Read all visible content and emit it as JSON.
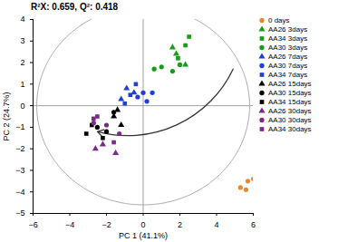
{
  "chart_data": {
    "type": "scatter",
    "title": "R²X: 0.659, Q²: 0.418",
    "x_label": "PC 1 (41.1%)",
    "y_label": "PC 2 (24.7%)",
    "xlim": [
      -6,
      6
    ],
    "xticks": [
      -6,
      -4,
      -2,
      0,
      2,
      4,
      6
    ],
    "ylim": [
      -5,
      4
    ],
    "yticks": [
      -5,
      -4,
      -3,
      -2,
      -1,
      0,
      1,
      2,
      3,
      4
    ],
    "legend": "right",
    "ellipse": {
      "center": [
        0,
        0
      ],
      "radii": [
        5.8,
        4.6
      ]
    },
    "arrow": {
      "from": [
        4.9,
        1.7
      ],
      "to": [
        -2.5,
        -1.2
      ]
    },
    "series": [
      {
        "name": "0 days",
        "color": "#e8892e",
        "marker": "circle",
        "x": [
          5.7,
          5.3,
          5.6,
          6.0
        ],
        "values": [
          -3.5,
          -3.8,
          -3.9,
          -3.4
        ]
      },
      {
        "name": "AA26 3days",
        "color": "#1a9a1a",
        "marker": "triangle",
        "x": [
          1.6,
          1.8,
          2.3
        ],
        "values": [
          2.7,
          2.4,
          1.9
        ]
      },
      {
        "name": "AA34 3days",
        "color": "#1a9a1a",
        "marker": "square",
        "x": [
          2.5,
          2.3,
          1.9
        ],
        "values": [
          3.2,
          2.8,
          2.2
        ]
      },
      {
        "name": "AA30 3days",
        "color": "#1a9a1a",
        "marker": "circle",
        "x": [
          0.6,
          1.0,
          1.6,
          2.0
        ],
        "values": [
          1.7,
          1.8,
          1.6,
          1.9
        ]
      },
      {
        "name": "AA26 7days",
        "color": "#1f3fd6",
        "marker": "triangle",
        "x": [
          -0.9,
          -0.5,
          -1.2
        ],
        "values": [
          0.8,
          0.6,
          0.3
        ]
      },
      {
        "name": "AA30 7days",
        "color": "#1f3fd6",
        "marker": "circle",
        "x": [
          0.0,
          0.5,
          -0.3,
          0.2
        ],
        "values": [
          0.6,
          0.6,
          0.4,
          0.2
        ]
      },
      {
        "name": "AA34 7days",
        "color": "#1f3fd6",
        "marker": "square",
        "x": [
          -0.7,
          -1.0,
          -0.4
        ],
        "values": [
          0.5,
          0.1,
          1.0
        ]
      },
      {
        "name": "AA26 15days",
        "color": "#000000",
        "marker": "triangle",
        "x": [
          -1.4,
          -1.6,
          -1.2
        ],
        "values": [
          -0.2,
          -0.5,
          -0.9
        ]
      },
      {
        "name": "AA30 15days",
        "color": "#000000",
        "marker": "circle",
        "x": [
          -2.5,
          -2.0,
          -1.6
        ],
        "values": [
          -1.0,
          -1.2,
          -0.3
        ]
      },
      {
        "name": "AA34 15days",
        "color": "#000000",
        "marker": "square",
        "x": [
          -3.1,
          -2.8,
          -2.2
        ],
        "values": [
          -1.3,
          -0.9,
          -1.5
        ]
      },
      {
        "name": "AA26 30days",
        "color": "#7b2a8a",
        "marker": "triangle",
        "x": [
          -2.2,
          -2.6,
          -1.5
        ],
        "values": [
          -1.8,
          -2.0,
          -2.2
        ]
      },
      {
        "name": "AA30 30days",
        "color": "#7b2a8a",
        "marker": "circle",
        "x": [
          -2.7,
          -2.0,
          -1.3
        ],
        "values": [
          -0.8,
          -0.9,
          -1.3
        ]
      },
      {
        "name": "AA34 30days",
        "color": "#7b2a8a",
        "marker": "square",
        "x": [
          -2.5,
          -2.7,
          -1.6
        ],
        "values": [
          -0.5,
          -0.6,
          -1.7
        ]
      }
    ]
  }
}
